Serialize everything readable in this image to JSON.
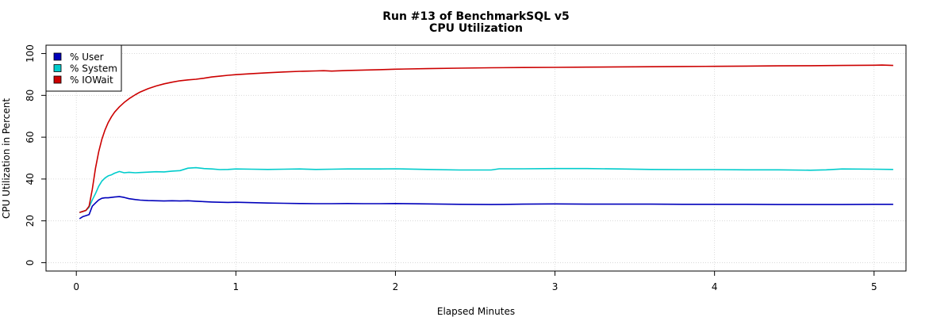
{
  "chart_data": {
    "type": "line",
    "title": "Run #13 of BenchmarkSQL v5",
    "subtitle": "CPU Utilization",
    "xlabel": "Elapsed Minutes",
    "ylabel": "CPU Utilization in Percent",
    "xlim": [
      -0.19,
      5.2
    ],
    "ylim": [
      -4,
      104
    ],
    "xticks": [
      0,
      1,
      2,
      3,
      4,
      5
    ],
    "yticks": [
      0,
      20,
      40,
      60,
      80,
      100
    ],
    "grid": true,
    "legend_position": "top-left",
    "series": [
      {
        "name": "% User",
        "color": "#0000bb",
        "x": [
          0.02,
          0.04,
          0.06,
          0.08,
          0.1,
          0.12,
          0.14,
          0.16,
          0.18,
          0.2,
          0.22,
          0.24,
          0.27,
          0.3,
          0.33,
          0.37,
          0.4,
          0.45,
          0.5,
          0.55,
          0.6,
          0.65,
          0.7,
          0.75,
          0.8,
          0.85,
          0.9,
          0.95,
          1.0,
          1.1,
          1.2,
          1.3,
          1.4,
          1.5,
          1.6,
          1.7,
          1.8,
          1.9,
          2.0,
          2.2,
          2.4,
          2.6,
          2.8,
          3.0,
          3.2,
          3.4,
          3.6,
          3.8,
          4.0,
          4.2,
          4.4,
          4.6,
          4.8,
          5.0,
          5.12
        ],
        "y": [
          21.0,
          22.0,
          22.5,
          23.0,
          27.0,
          28.5,
          30.0,
          30.8,
          31.0,
          31.0,
          31.2,
          31.4,
          31.6,
          31.2,
          30.6,
          30.2,
          29.9,
          29.7,
          29.6,
          29.5,
          29.6,
          29.5,
          29.6,
          29.4,
          29.2,
          29.0,
          28.9,
          28.8,
          28.9,
          28.7,
          28.5,
          28.4,
          28.3,
          28.2,
          28.2,
          28.3,
          28.2,
          28.2,
          28.3,
          28.1,
          27.9,
          27.8,
          28.0,
          28.1,
          28.0,
          28.0,
          28.0,
          27.9,
          27.9,
          27.9,
          27.8,
          27.8,
          27.8,
          27.9,
          27.9
        ]
      },
      {
        "name": "% System",
        "color": "#00cccc",
        "x": [
          0.02,
          0.04,
          0.06,
          0.08,
          0.1,
          0.12,
          0.14,
          0.16,
          0.18,
          0.2,
          0.22,
          0.24,
          0.27,
          0.3,
          0.33,
          0.37,
          0.4,
          0.45,
          0.5,
          0.55,
          0.6,
          0.65,
          0.7,
          0.75,
          0.8,
          0.85,
          0.9,
          0.95,
          1.0,
          1.1,
          1.2,
          1.3,
          1.4,
          1.5,
          1.6,
          1.7,
          1.8,
          1.9,
          2.0,
          2.2,
          2.4,
          2.6,
          2.65,
          2.8,
          3.0,
          3.2,
          3.4,
          3.6,
          3.8,
          4.0,
          4.2,
          4.4,
          4.6,
          4.7,
          4.8,
          5.0,
          5.12
        ],
        "y": [
          24.0,
          24.5,
          25.0,
          26.5,
          30.0,
          33.0,
          36.5,
          39.0,
          40.5,
          41.5,
          42.0,
          42.8,
          43.6,
          43.0,
          43.2,
          43.0,
          43.1,
          43.3,
          43.5,
          43.4,
          43.8,
          44.0,
          45.2,
          45.4,
          45.0,
          44.8,
          44.5,
          44.6,
          44.8,
          44.7,
          44.6,
          44.7,
          44.8,
          44.6,
          44.7,
          44.8,
          44.8,
          44.8,
          44.9,
          44.6,
          44.3,
          44.3,
          44.9,
          44.9,
          45.0,
          45.0,
          44.8,
          44.6,
          44.5,
          44.5,
          44.4,
          44.4,
          44.2,
          44.4,
          44.8,
          44.7,
          44.6
        ]
      },
      {
        "name": "% IOWait",
        "color": "#cc0000",
        "x": [
          0.02,
          0.04,
          0.06,
          0.08,
          0.1,
          0.12,
          0.14,
          0.16,
          0.18,
          0.2,
          0.22,
          0.24,
          0.27,
          0.3,
          0.33,
          0.37,
          0.4,
          0.45,
          0.5,
          0.55,
          0.6,
          0.65,
          0.7,
          0.75,
          0.8,
          0.85,
          0.9,
          0.95,
          1.0,
          1.1,
          1.2,
          1.3,
          1.4,
          1.5,
          1.55,
          1.6,
          1.7,
          1.8,
          1.9,
          2.0,
          2.2,
          2.4,
          2.6,
          2.8,
          3.0,
          3.2,
          3.4,
          3.6,
          3.8,
          4.0,
          4.2,
          4.4,
          4.6,
          4.8,
          5.0,
          5.05,
          5.12
        ],
        "y": [
          24.0,
          24.5,
          25.0,
          27.0,
          35.0,
          45.0,
          53.0,
          59.0,
          63.5,
          67.0,
          69.8,
          72.0,
          74.5,
          76.6,
          78.4,
          80.3,
          81.6,
          83.2,
          84.5,
          85.5,
          86.3,
          87.0,
          87.4,
          87.7,
          88.2,
          88.8,
          89.2,
          89.6,
          89.9,
          90.4,
          90.8,
          91.2,
          91.5,
          91.7,
          91.8,
          91.6,
          91.9,
          92.1,
          92.3,
          92.5,
          92.8,
          93.0,
          93.2,
          93.3,
          93.4,
          93.5,
          93.6,
          93.7,
          93.8,
          93.9,
          94.0,
          94.1,
          94.2,
          94.3,
          94.4,
          94.5,
          94.3
        ]
      }
    ]
  }
}
